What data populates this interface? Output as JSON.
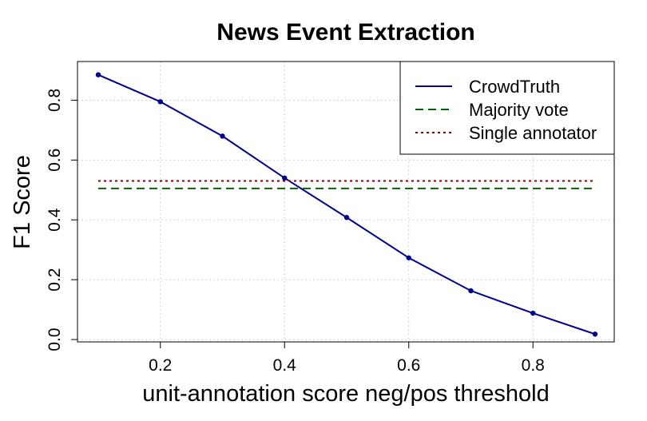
{
  "chart_data": {
    "type": "line",
    "title": "News Event Extraction",
    "xlabel": "unit-annotation score neg/pos threshold",
    "ylabel": "F1 Score",
    "xlim": [
      0.1,
      0.9
    ],
    "ylim": [
      0.0,
      0.9
    ],
    "xticks": [
      0.2,
      0.4,
      0.6,
      0.8
    ],
    "yticks": [
      0.0,
      0.2,
      0.4,
      0.6,
      0.8
    ],
    "xtick_labels": [
      "0.2",
      "0.4",
      "0.6",
      "0.8"
    ],
    "ytick_labels": [
      "0.0",
      "0.2",
      "0.4",
      "0.6",
      "0.8"
    ],
    "grid": true,
    "legend_position": "top-right",
    "x": [
      0.1,
      0.2,
      0.3,
      0.4,
      0.5,
      0.6,
      0.7,
      0.8,
      0.9
    ],
    "series": [
      {
        "name": "CrowdTruth",
        "style": "solid",
        "markers": true,
        "color": "#00008b",
        "values": [
          0.885,
          0.795,
          0.68,
          0.54,
          0.408,
          0.273,
          0.163,
          0.088,
          0.018
        ]
      },
      {
        "name": "Majority vote",
        "style": "dashed",
        "markers": false,
        "color": "#006400",
        "values": [
          0.505,
          0.505,
          0.505,
          0.505,
          0.505,
          0.505,
          0.505,
          0.505,
          0.505
        ]
      },
      {
        "name": "Single annotator",
        "style": "dotted",
        "markers": false,
        "color": "#8b0000",
        "values": [
          0.53,
          0.53,
          0.53,
          0.53,
          0.53,
          0.53,
          0.53,
          0.53,
          0.53
        ]
      }
    ]
  }
}
